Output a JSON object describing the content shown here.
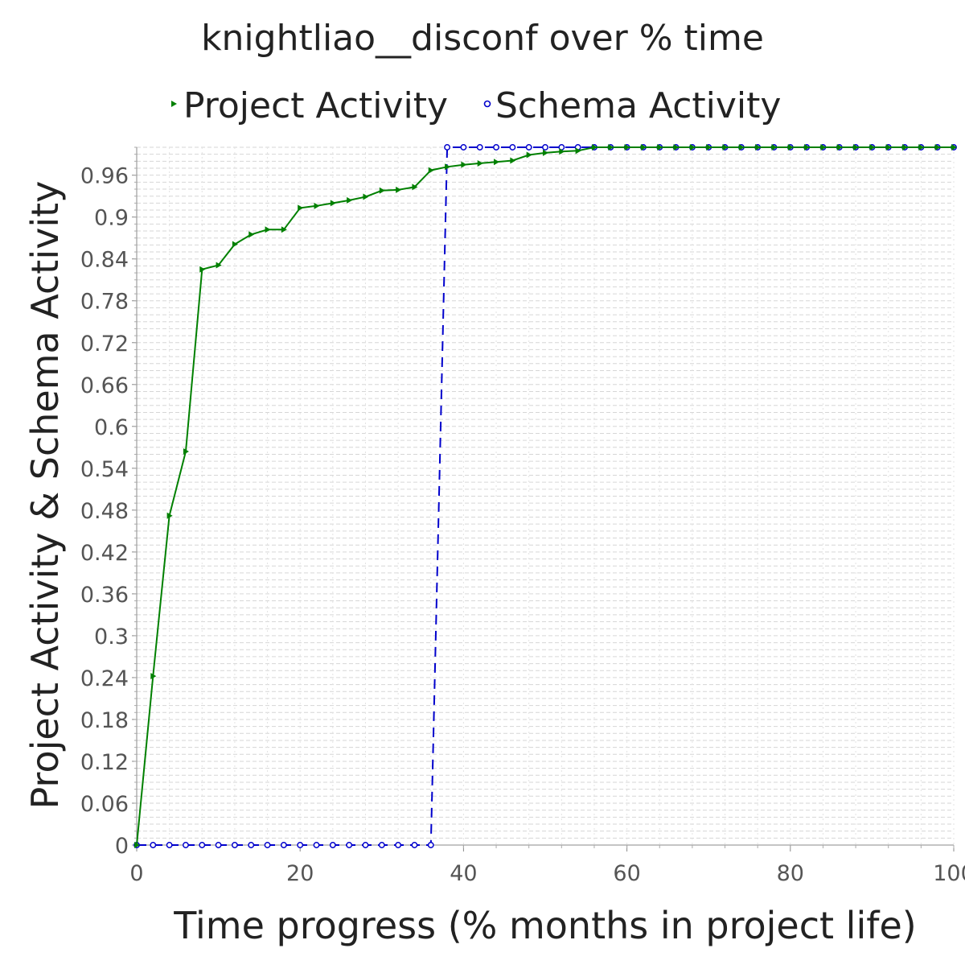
{
  "chart_data": {
    "type": "line",
    "title": "knightliao__disconf over % time",
    "xlabel": "Time progress (% months in project life)",
    "ylabel": "Project Activity & Schema Activity",
    "xlim": [
      0,
      100
    ],
    "ylim": [
      0,
      1
    ],
    "x_ticks": [
      "0",
      "20",
      "40",
      "60",
      "80",
      "100"
    ],
    "y_ticks": [
      "0",
      "0.06",
      "0.12",
      "0.18",
      "0.24",
      "0.3",
      "0.36",
      "0.42",
      "0.48",
      "0.54",
      "0.6",
      "0.66",
      "0.72",
      "0.78",
      "0.84",
      "0.9",
      "0.96"
    ],
    "grid": true,
    "legend_position": "top",
    "series": [
      {
        "name": "Project Activity",
        "color": "#008000",
        "line_style": "solid",
        "marker": "triangle-right",
        "x": [
          0,
          2,
          4,
          6,
          8,
          10,
          12,
          14,
          16,
          18,
          20,
          22,
          24,
          26,
          28,
          30,
          32,
          34,
          36,
          38,
          40,
          42,
          44,
          46,
          48,
          50,
          52,
          54,
          56,
          58,
          60,
          62,
          64,
          66,
          68,
          70,
          72,
          74,
          76,
          78,
          80,
          82,
          84,
          86,
          88,
          90,
          92,
          94,
          96,
          98,
          100
        ],
        "y": [
          0,
          0.242,
          0.472,
          0.564,
          0.825,
          0.831,
          0.861,
          0.875,
          0.882,
          0.882,
          0.913,
          0.916,
          0.92,
          0.924,
          0.929,
          0.938,
          0.939,
          0.943,
          0.967,
          0.972,
          0.975,
          0.977,
          0.979,
          0.981,
          0.989,
          0.992,
          0.994,
          0.995,
          1,
          1,
          1,
          1,
          1,
          1,
          1,
          1,
          1,
          1,
          1,
          1,
          1,
          1,
          1,
          1,
          1,
          1,
          1,
          1,
          1,
          1,
          1
        ]
      },
      {
        "name": "Schema Activity",
        "color": "#0000cc",
        "line_style": "dashed",
        "marker": "circle",
        "x": [
          0,
          2,
          4,
          6,
          8,
          10,
          12,
          14,
          16,
          18,
          20,
          22,
          24,
          26,
          28,
          30,
          32,
          34,
          36,
          38,
          40,
          42,
          44,
          46,
          48,
          50,
          52,
          54,
          56,
          58,
          60,
          62,
          64,
          66,
          68,
          70,
          72,
          74,
          76,
          78,
          80,
          82,
          84,
          86,
          88,
          90,
          92,
          94,
          96,
          98,
          100
        ],
        "y": [
          0,
          0,
          0,
          0,
          0,
          0,
          0,
          0,
          0,
          0,
          0,
          0,
          0,
          0,
          0,
          0,
          0,
          0,
          0,
          1,
          1,
          1,
          1,
          1,
          1,
          1,
          1,
          1,
          1,
          1,
          1,
          1,
          1,
          1,
          1,
          1,
          1,
          1,
          1,
          1,
          1,
          1,
          1,
          1,
          1,
          1,
          1,
          1,
          1,
          1,
          1
        ]
      }
    ]
  }
}
